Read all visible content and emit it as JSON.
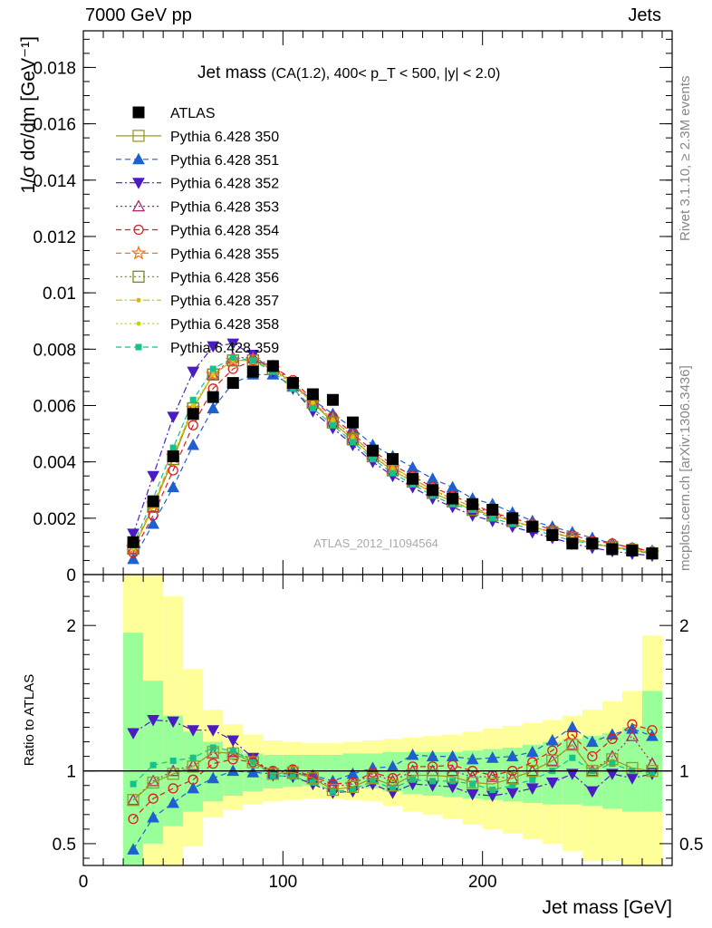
{
  "header": {
    "left": "7000 GeV pp",
    "right": "Jets"
  },
  "side_labels": {
    "rivet": "Rivet 3.1.10, ≥ 2.3M events",
    "source": "mcplots.cern.ch [arXiv:1306.3436]"
  },
  "chart_data": [
    {
      "type": "scatter",
      "title_main": "Jet mass",
      "title_sub": "(CA(1.2), 400< p_T < 500, |y| < 2.0)",
      "ylabel": "1/σ dσ/dm [GeV⁻¹]",
      "watermark": "ATLAS_2012_I1094564",
      "ylim": [
        0,
        0.0193
      ],
      "xlim": [
        0,
        295
      ],
      "yticks": [
        "0",
        "0.002",
        "0.004",
        "0.006",
        "0.008",
        "0.01",
        "0.012",
        "0.014",
        "0.016",
        "0.018"
      ],
      "ytick_values": [
        0,
        0.002,
        0.004,
        0.006,
        0.008,
        0.01,
        0.012,
        0.014,
        0.016,
        0.018
      ],
      "x": [
        25,
        35,
        45,
        55,
        65,
        75,
        85,
        95,
        105,
        115,
        125,
        135,
        145,
        155,
        165,
        175,
        185,
        195,
        205,
        215,
        225,
        235,
        245,
        255,
        265,
        275,
        285
      ],
      "series": [
        {
          "name": "ATLAS",
          "color": "#000000",
          "marker": "square",
          "line": "none",
          "values": [
            0.00115,
            0.0026,
            0.0042,
            0.0057,
            0.0063,
            0.0068,
            0.0072,
            0.0074,
            0.0068,
            0.0064,
            0.0062,
            0.0054,
            0.0044,
            0.0041,
            0.0034,
            0.003,
            0.0027,
            0.0025,
            0.0023,
            0.002,
            0.0017,
            0.0014,
            0.0011,
            0.0011,
            0.0009,
            0.00085,
            0.00075
          ]
        },
        {
          "name": "Pythia 6.428 350",
          "color": "#9a9a1e",
          "marker": "open-square",
          "line": "solid",
          "values": [
            0.00092,
            0.0024,
            0.0041,
            0.0059,
            0.0071,
            0.0076,
            0.0076,
            0.0073,
            0.0068,
            0.0061,
            0.0054,
            0.0048,
            0.0042,
            0.0037,
            0.0033,
            0.0029,
            0.0026,
            0.0023,
            0.0021,
            0.0019,
            0.0017,
            0.0015,
            0.0013,
            0.0011,
            0.00097,
            0.00087,
            0.00075
          ]
        },
        {
          "name": "Pythia 6.428 351",
          "color": "#1f5fcf",
          "marker": "triangle-up",
          "line": "dashed",
          "values": [
            0.00055,
            0.0018,
            0.0031,
            0.0046,
            0.0059,
            0.0068,
            0.0071,
            0.0071,
            0.0067,
            0.0062,
            0.0057,
            0.0052,
            0.0046,
            0.0042,
            0.0038,
            0.0034,
            0.0031,
            0.0027,
            0.0025,
            0.0022,
            0.0019,
            0.0017,
            0.0015,
            0.0013,
            0.0011,
            0.00095,
            0.00085
          ]
        },
        {
          "name": "Pythia 6.428 352",
          "color": "#4b1cc4",
          "marker": "triangle-down",
          "line": "dashdot",
          "values": [
            0.00145,
            0.0035,
            0.0056,
            0.0072,
            0.0081,
            0.0082,
            0.0078,
            0.0072,
            0.0066,
            0.0058,
            0.0052,
            0.0046,
            0.004,
            0.0035,
            0.0031,
            0.0027,
            0.0024,
            0.0021,
            0.0019,
            0.0017,
            0.0015,
            0.0013,
            0.0011,
            0.00095,
            0.00083,
            0.00074,
            0.00067
          ]
        },
        {
          "name": "Pythia 6.428 353",
          "color": "#b0246f",
          "marker": "open-triangle-up",
          "line": "dotted",
          "values": [
            0.00092,
            0.0024,
            0.0042,
            0.0059,
            0.0071,
            0.0077,
            0.0077,
            0.0074,
            0.0068,
            0.0061,
            0.0055,
            0.0049,
            0.0043,
            0.0038,
            0.0034,
            0.003,
            0.0027,
            0.0024,
            0.0022,
            0.0019,
            0.0017,
            0.0015,
            0.0013,
            0.0011,
            0.00099,
            0.00089,
            0.00077
          ]
        },
        {
          "name": "Pythia 6.428 354",
          "color": "#e01c1c",
          "marker": "open-circle",
          "line": "dashed",
          "values": [
            0.00078,
            0.0021,
            0.0037,
            0.0053,
            0.0066,
            0.0073,
            0.0076,
            0.0074,
            0.0069,
            0.0062,
            0.0056,
            0.005,
            0.0044,
            0.0039,
            0.0035,
            0.0031,
            0.0028,
            0.0025,
            0.0022,
            0.002,
            0.0018,
            0.0016,
            0.0014,
            0.0012,
            0.0011,
            0.00095,
            0.00082
          ]
        },
        {
          "name": "Pythia 6.428 355",
          "color": "#f07820",
          "marker": "open-star",
          "line": "dashed",
          "values": [
            0.00095,
            0.0025,
            0.0042,
            0.0059,
            0.0071,
            0.0076,
            0.0076,
            0.0073,
            0.0068,
            0.0061,
            0.0055,
            0.0049,
            0.0043,
            0.0038,
            0.0034,
            0.003,
            0.0027,
            0.0024,
            0.0021,
            0.0019,
            0.0017,
            0.0015,
            0.0013,
            0.0011,
            0.00098,
            0.00088,
            0.00076
          ]
        },
        {
          "name": "Pythia 6.428 356",
          "color": "#7a8a10",
          "marker": "open-square",
          "line": "dotted",
          "values": [
            0.00092,
            0.0024,
            0.0041,
            0.0059,
            0.0071,
            0.0076,
            0.0076,
            0.0073,
            0.0067,
            0.0061,
            0.0054,
            0.0048,
            0.0042,
            0.0037,
            0.0033,
            0.0029,
            0.0026,
            0.0023,
            0.0021,
            0.0019,
            0.0017,
            0.0015,
            0.0013,
            0.0011,
            0.00097,
            0.00087,
            0.00075
          ]
        },
        {
          "name": "Pythia 6.428 357",
          "color": "#d6b800",
          "marker": "small-dot",
          "line": "dashdot",
          "values": [
            0.00093,
            0.0024,
            0.0042,
            0.0059,
            0.0071,
            0.0076,
            0.0076,
            0.0073,
            0.0068,
            0.0061,
            0.0055,
            0.0049,
            0.0043,
            0.0038,
            0.0034,
            0.003,
            0.0027,
            0.0024,
            0.0021,
            0.0019,
            0.0017,
            0.0015,
            0.0013,
            0.0011,
            0.00098,
            0.00088,
            0.00076
          ]
        },
        {
          "name": "Pythia 6.428 358",
          "color": "#c8d400",
          "marker": "small-dot",
          "line": "dotted",
          "values": [
            0.00094,
            0.0025,
            0.0042,
            0.006,
            0.0071,
            0.0076,
            0.0076,
            0.0073,
            0.0067,
            0.0061,
            0.0054,
            0.0048,
            0.0042,
            0.0037,
            0.0033,
            0.0029,
            0.0026,
            0.0023,
            0.0021,
            0.0019,
            0.0017,
            0.0015,
            0.0013,
            0.0011,
            0.00097,
            0.00087,
            0.00075
          ]
        },
        {
          "name": "Pythia 6.428 359",
          "color": "#18c08a",
          "marker": "filled-square-small",
          "line": "dashed",
          "values": [
            0.00105,
            0.0027,
            0.0045,
            0.0062,
            0.0073,
            0.0077,
            0.0076,
            0.0072,
            0.0066,
            0.0059,
            0.0053,
            0.0047,
            0.0041,
            0.0036,
            0.0032,
            0.0028,
            0.0025,
            0.0023,
            0.002,
            0.0018,
            0.0016,
            0.0014,
            0.0012,
            0.0011,
            0.00095,
            0.00085,
            0.00074
          ]
        }
      ]
    },
    {
      "type": "scatter",
      "ylabel": "Ratio to ATLAS",
      "xlabel": "Jet mass [GeV]",
      "xlim": [
        0,
        295
      ],
      "ylim": [
        0.35,
        2.35
      ],
      "xticks": [
        "0",
        "100",
        "200"
      ],
      "xtick_values": [
        0,
        100,
        200
      ],
      "yticks": [
        "0.5",
        "1",
        "2"
      ],
      "ytick_values": [
        0.5,
        1,
        2
      ],
      "bands": {
        "x_edges": [
          20,
          30,
          40,
          50,
          60,
          70,
          80,
          90,
          100,
          110,
          120,
          130,
          140,
          150,
          160,
          170,
          180,
          190,
          200,
          210,
          220,
          230,
          240,
          250,
          260,
          270,
          280,
          290
        ],
        "yellow_lo": [
          0.35,
          0.35,
          0.35,
          0.48,
          0.68,
          0.73,
          0.77,
          0.79,
          0.8,
          0.81,
          0.81,
          0.8,
          0.79,
          0.76,
          0.72,
          0.7,
          0.67,
          0.63,
          0.6,
          0.57,
          0.53,
          0.5,
          0.45,
          0.38,
          0.38,
          0.35,
          0.35
        ],
        "yellow_hi": [
          2.35,
          2.35,
          2.2,
          1.7,
          1.42,
          1.32,
          1.25,
          1.21,
          1.2,
          1.19,
          1.19,
          1.2,
          1.21,
          1.22,
          1.23,
          1.24,
          1.25,
          1.27,
          1.29,
          1.31,
          1.33,
          1.35,
          1.38,
          1.42,
          1.48,
          1.55,
          1.93
        ],
        "green_lo": [
          0.35,
          0.5,
          0.62,
          0.72,
          0.79,
          0.83,
          0.86,
          0.88,
          0.89,
          0.9,
          0.9,
          0.89,
          0.88,
          0.86,
          0.84,
          0.83,
          0.82,
          0.81,
          0.8,
          0.79,
          0.78,
          0.77,
          0.77,
          0.76,
          0.74,
          0.72,
          0.72
        ],
        "green_hi": [
          1.95,
          1.62,
          1.38,
          1.27,
          1.2,
          1.15,
          1.12,
          1.11,
          1.11,
          1.11,
          1.11,
          1.12,
          1.12,
          1.13,
          1.13,
          1.13,
          1.13,
          1.14,
          1.15,
          1.16,
          1.18,
          1.2,
          1.22,
          1.24,
          1.26,
          1.3,
          1.55
        ]
      },
      "x": [
        25,
        35,
        45,
        55,
        65,
        75,
        85,
        95,
        105,
        115,
        125,
        135,
        145,
        155,
        165,
        175,
        185,
        195,
        205,
        215,
        225,
        235,
        245,
        255,
        265,
        275,
        285
      ],
      "series": [
        {
          "name": "Pythia 6.428 351",
          "values": [
            0.46,
            0.68,
            0.78,
            0.88,
            0.95,
            1.0,
            0.99,
            0.98,
            0.98,
            0.97,
            0.93,
            0.98,
            1.02,
            1.03,
            1.11,
            1.1,
            1.1,
            1.08,
            1.09,
            1.1,
            1.13,
            1.21,
            1.3,
            1.2,
            1.25,
            1.29,
            1.24
          ]
        },
        {
          "name": "Pythia 6.428 352",
          "values": [
            1.26,
            1.35,
            1.34,
            1.28,
            1.28,
            1.21,
            1.09,
            0.97,
            0.96,
            0.91,
            0.85,
            0.86,
            0.91,
            0.85,
            0.91,
            0.9,
            0.89,
            0.84,
            0.83,
            0.85,
            0.88,
            0.92,
            0.98,
            0.86,
            0.98,
            0.95,
            0.98
          ]
        },
        {
          "name": "Pythia 6.428 353",
          "values": [
            0.8,
            0.93,
            1.0,
            1.04,
            1.12,
            1.13,
            1.08,
            0.99,
            1.0,
            0.95,
            0.89,
            0.91,
            0.98,
            0.93,
            1.0,
            1.0,
            1.0,
            0.96,
            0.96,
            0.95,
            1.0,
            1.07,
            1.18,
            1.0,
            1.1,
            1.24,
            1.05
          ]
        },
        {
          "name": "Pythia 6.428 354",
          "values": [
            0.67,
            0.81,
            0.88,
            0.94,
            1.05,
            1.08,
            1.06,
            1.0,
            1.01,
            0.96,
            0.91,
            0.92,
            0.99,
            0.95,
            1.03,
            1.03,
            1.04,
            1.0,
            0.97,
            1.0,
            1.06,
            1.14,
            1.25,
            1.1,
            1.22,
            1.32,
            1.28
          ]
        },
        {
          "name": "Pythia 6.428 359",
          "values": [
            0.91,
            1.04,
            1.07,
            1.09,
            1.16,
            1.14,
            1.06,
            0.97,
            0.96,
            0.92,
            0.86,
            0.87,
            0.93,
            0.88,
            0.94,
            0.93,
            0.93,
            0.91,
            0.87,
            0.9,
            0.94,
            1.0,
            1.09,
            1.0,
            1.05,
            1.0,
            0.99
          ]
        },
        {
          "name": "Pythia 6.428 350",
          "values": [
            0.8,
            0.92,
            0.98,
            1.03,
            1.13,
            1.12,
            1.06,
            0.98,
            0.99,
            0.95,
            0.87,
            0.89,
            0.95,
            0.9,
            0.97,
            0.97,
            0.96,
            0.92,
            0.91,
            0.95,
            1.0,
            1.07,
            1.18,
            1.0,
            1.08,
            1.02,
            1.0
          ]
        }
      ]
    }
  ]
}
